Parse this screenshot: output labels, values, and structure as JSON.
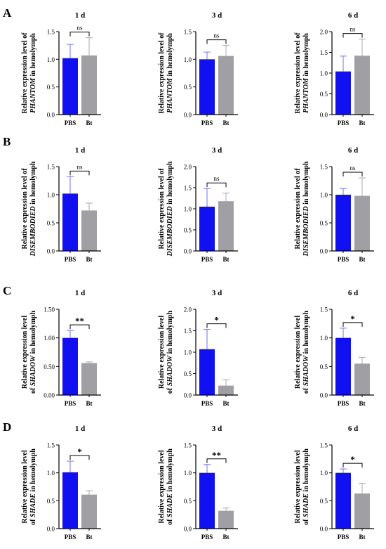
{
  "panel_letters": [
    "A",
    "B",
    "C",
    "D"
  ],
  "colors": {
    "pbs": "#1010f0",
    "bt": "#a0a0a4",
    "pbs_err": "#7272ee",
    "bt_err": "#a8a8ac",
    "axis": "#000000"
  },
  "chart_data": [
    {
      "type": "bar",
      "row": 0,
      "col": 0,
      "title": "1 d",
      "ylabel_pre": "Relative expression level of",
      "gene": "PHANTOM",
      "ylabel_post": " in hemolymph",
      "categories": [
        "PBS",
        "Bt"
      ],
      "values": [
        1.02,
        1.07
      ],
      "errors": [
        0.25,
        0.32
      ],
      "ylim": [
        0,
        1.5
      ],
      "yticks": [
        "0.0",
        "0.5",
        "1.0",
        "1.5"
      ],
      "significance": "ns"
    },
    {
      "type": "bar",
      "row": 0,
      "col": 1,
      "title": "3 d",
      "ylabel_pre": "Relative expression level of",
      "gene": "PHANTOM",
      "ylabel_post": " in hemolymph",
      "categories": [
        "PBS",
        "Bt"
      ],
      "values": [
        1.0,
        1.06
      ],
      "errors": [
        0.13,
        0.19
      ],
      "ylim": [
        0,
        1.5
      ],
      "yticks": [
        "0.0",
        "0.5",
        "1.0",
        "1.5"
      ],
      "significance": "ns"
    },
    {
      "type": "bar",
      "row": 0,
      "col": 2,
      "title": "6 d",
      "ylabel_pre": "Relative expression level of",
      "gene": "PHANTOM",
      "ylabel_post": " in hemolymph",
      "categories": [
        "PBS",
        "Bt"
      ],
      "values": [
        1.04,
        1.42
      ],
      "errors": [
        0.37,
        0.4
      ],
      "ylim": [
        0,
        2.0
      ],
      "yticks": [
        "0.0",
        "0.5",
        "1.0",
        "1.5",
        "2.0"
      ],
      "significance": "ns"
    },
    {
      "type": "bar",
      "row": 1,
      "col": 0,
      "title": "1 d",
      "ylabel_pre": "Relative expression level of",
      "gene": "DISEMBODIED",
      "ylabel_post": " in hemolymph",
      "categories": [
        "PBS",
        "Bt"
      ],
      "values": [
        1.02,
        0.72
      ],
      "errors": [
        0.3,
        0.13
      ],
      "ylim": [
        0,
        1.5
      ],
      "yticks": [
        "0.0",
        "0.5",
        "1.0",
        "1.5"
      ],
      "significance": "ns"
    },
    {
      "type": "bar",
      "row": 1,
      "col": 1,
      "title": "3 d",
      "ylabel_pre": "Relative expression level of",
      "gene": "DISEMBODIED",
      "ylabel_post": " in hemolymph",
      "categories": [
        "PBS",
        "Bt"
      ],
      "values": [
        1.05,
        1.18
      ],
      "errors": [
        0.43,
        0.19
      ],
      "ylim": [
        0,
        2.0
      ],
      "yticks": [
        "0.0",
        "0.5",
        "1.0",
        "1.5",
        "2.0"
      ],
      "significance": "ns"
    },
    {
      "type": "bar",
      "row": 1,
      "col": 2,
      "title": "6 d",
      "ylabel_pre": "Relative expression level of",
      "gene": "DISEMBODIED",
      "ylabel_post": " in hemolymph",
      "categories": [
        "PBS",
        "Bt"
      ],
      "values": [
        1.0,
        0.98
      ],
      "errors": [
        0.11,
        0.32
      ],
      "ylim": [
        0,
        1.5
      ],
      "yticks": [
        "0.0",
        "0.5",
        "1.0",
        "1.5"
      ],
      "significance": "ns"
    },
    {
      "type": "bar",
      "row": 2,
      "col": 0,
      "title": "1 d",
      "ylabel_pre": "Relative expression level",
      "gene": "SHADOW",
      "ylabel_post": " in hemolymph",
      "gene_prefix": "of ",
      "categories": [
        "PBS",
        "Bt"
      ],
      "values": [
        1.0,
        0.56
      ],
      "errors": [
        0.13,
        0.02
      ],
      "ylim": [
        0,
        1.5
      ],
      "yticks": [
        "0.00",
        "0.50",
        "1.00",
        "1.50"
      ],
      "significance": "**"
    },
    {
      "type": "bar",
      "row": 2,
      "col": 1,
      "title": "3 d",
      "ylabel_pre": "Relative expression level",
      "gene": "SHADOW",
      "ylabel_post": " in hemolymph",
      "gene_prefix": "of ",
      "categories": [
        "PBS",
        "Bt"
      ],
      "values": [
        1.07,
        0.22
      ],
      "errors": [
        0.46,
        0.14
      ],
      "ylim": [
        0,
        2.0
      ],
      "yticks": [
        "0.0",
        "0.5",
        "1.0",
        "1.5",
        "2.0"
      ],
      "significance": "*"
    },
    {
      "type": "bar",
      "row": 2,
      "col": 2,
      "title": "6 d",
      "ylabel_pre": "Relative expression level",
      "gene": "SHADOW",
      "ylabel_post": " in hemolymph",
      "gene_prefix": "of ",
      "categories": [
        "PBS",
        "Bt"
      ],
      "values": [
        1.0,
        0.55
      ],
      "errors": [
        0.17,
        0.11
      ],
      "ylim": [
        0,
        1.5
      ],
      "yticks": [
        "0.0",
        "0.5",
        "1.0",
        "1.5"
      ],
      "significance": "*"
    },
    {
      "type": "bar",
      "row": 3,
      "col": 0,
      "title": "1 d",
      "ylabel_pre": "Relative expression level",
      "gene": "SHADE",
      "ylabel_post": " in hemolymph",
      "gene_prefix": "of ",
      "categories": [
        "PBS",
        "Bt"
      ],
      "values": [
        1.01,
        0.61
      ],
      "errors": [
        0.2,
        0.07
      ],
      "ylim": [
        0,
        1.5
      ],
      "yticks": [
        "0.0",
        "0.5",
        "1.0",
        "1.5"
      ],
      "significance": "*"
    },
    {
      "type": "bar",
      "row": 3,
      "col": 1,
      "title": "3 d",
      "ylabel_pre": "Relative expression level",
      "gene": "SHADE",
      "ylabel_post": " in hemolymph",
      "gene_prefix": "of ",
      "categories": [
        "PBS",
        "Bt"
      ],
      "values": [
        1.0,
        0.32
      ],
      "errors": [
        0.15,
        0.05
      ],
      "ylim": [
        0,
        1.5
      ],
      "yticks": [
        "0.0",
        "0.5",
        "1.0",
        "1.5"
      ],
      "significance": "**"
    },
    {
      "type": "bar",
      "row": 3,
      "col": 2,
      "title": "6 d",
      "ylabel_pre": "Relative expression level",
      "gene": "SHADE",
      "ylabel_post": " in hemolymph",
      "gene_prefix": "of ",
      "categories": [
        "PBS",
        "Bt"
      ],
      "values": [
        1.0,
        0.63
      ],
      "errors": [
        0.07,
        0.18
      ],
      "ylim": [
        0,
        1.5
      ],
      "yticks": [
        "0.0",
        "0.5",
        "1.0",
        "1.5"
      ],
      "significance": "*"
    }
  ]
}
